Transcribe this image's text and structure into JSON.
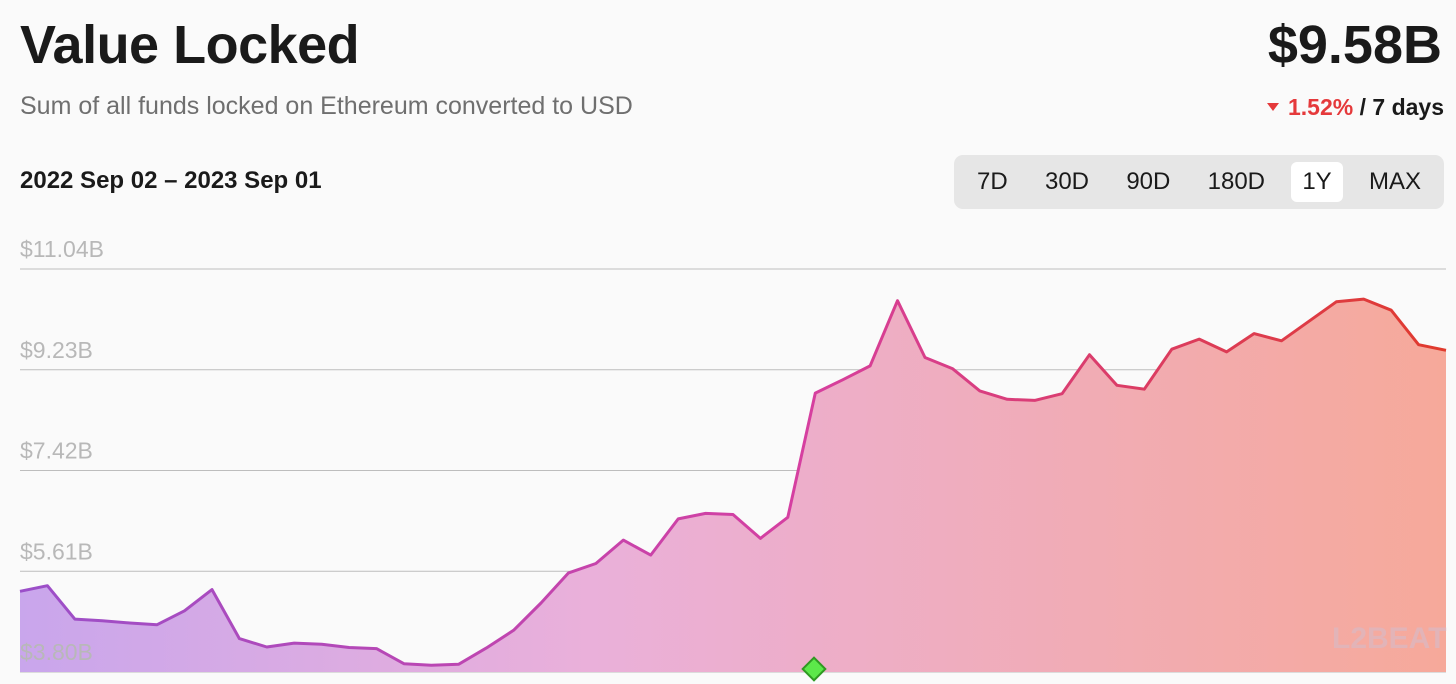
{
  "header": {
    "title": "Value Locked",
    "subtitle": "Sum of all funds locked on Ethereum converted to USD",
    "value": "$9.58B",
    "change_pct": "1.52%",
    "change_period": "/ 7 days",
    "date_range": "2022 Sep 02 – 2023 Sep 01"
  },
  "tabs": [
    {
      "label": "7D",
      "active": false
    },
    {
      "label": "30D",
      "active": false
    },
    {
      "label": "90D",
      "active": false
    },
    {
      "label": "180D",
      "active": false
    },
    {
      "label": "1Y",
      "active": true
    },
    {
      "label": "MAX",
      "active": false
    }
  ],
  "watermark": "L2BEAT",
  "colors": {
    "start": "#9b4fc9",
    "mid": "#d63fa0",
    "end": "#e03a2c",
    "down": "#e5393b",
    "marker": "#5ce84a"
  },
  "chart_data": {
    "type": "area",
    "title": "Value Locked",
    "xlabel": "",
    "ylabel": "",
    "x_range": [
      "2022-09-02",
      "2023-09-01"
    ],
    "ylim": [
      3.8,
      11.04
    ],
    "y_ticks": [
      "$3.80B",
      "$5.61B",
      "$7.42B",
      "$9.23B",
      "$11.04B"
    ],
    "y_tick_values": [
      3.8,
      5.61,
      7.42,
      9.23,
      11.04
    ],
    "grid": true,
    "x": [
      "2022-09-02",
      "2022-09-09",
      "2022-09-16",
      "2022-09-23",
      "2022-09-30",
      "2022-10-07",
      "2022-10-14",
      "2022-10-21",
      "2022-10-28",
      "2022-11-04",
      "2022-11-11",
      "2022-11-18",
      "2022-11-25",
      "2022-12-02",
      "2022-12-09",
      "2022-12-16",
      "2022-12-23",
      "2022-12-30",
      "2023-01-06",
      "2023-01-13",
      "2023-01-20",
      "2023-01-27",
      "2023-02-03",
      "2023-02-10",
      "2023-02-17",
      "2023-02-24",
      "2023-03-03",
      "2023-03-10",
      "2023-03-17",
      "2023-03-24",
      "2023-03-31",
      "2023-04-07",
      "2023-04-14",
      "2023-04-21",
      "2023-04-28",
      "2023-05-05",
      "2023-05-12",
      "2023-05-19",
      "2023-05-26",
      "2023-06-02",
      "2023-06-09",
      "2023-06-16",
      "2023-06-23",
      "2023-06-30",
      "2023-07-07",
      "2023-07-14",
      "2023-07-21",
      "2023-07-28",
      "2023-08-04",
      "2023-08-11",
      "2023-08-18",
      "2023-08-25",
      "2023-09-01"
    ],
    "series": [
      {
        "values": [
          5.25,
          5.35,
          4.75,
          4.72,
          4.68,
          4.65,
          4.9,
          5.28,
          4.4,
          4.25,
          4.32,
          4.3,
          4.24,
          4.22,
          3.95,
          3.92,
          3.94,
          4.23,
          4.55,
          5.04,
          5.58,
          5.75,
          6.17,
          5.9,
          6.55,
          6.65,
          6.63,
          6.2,
          6.58,
          8.81,
          9.05,
          9.3,
          10.47,
          9.45,
          9.25,
          8.85,
          8.7,
          8.68,
          8.8,
          9.5,
          8.95,
          8.88,
          9.6,
          9.78,
          9.55,
          9.88,
          9.75,
          10.1,
          10.45,
          10.5,
          10.3,
          9.68,
          9.58
        ]
      }
    ]
  }
}
